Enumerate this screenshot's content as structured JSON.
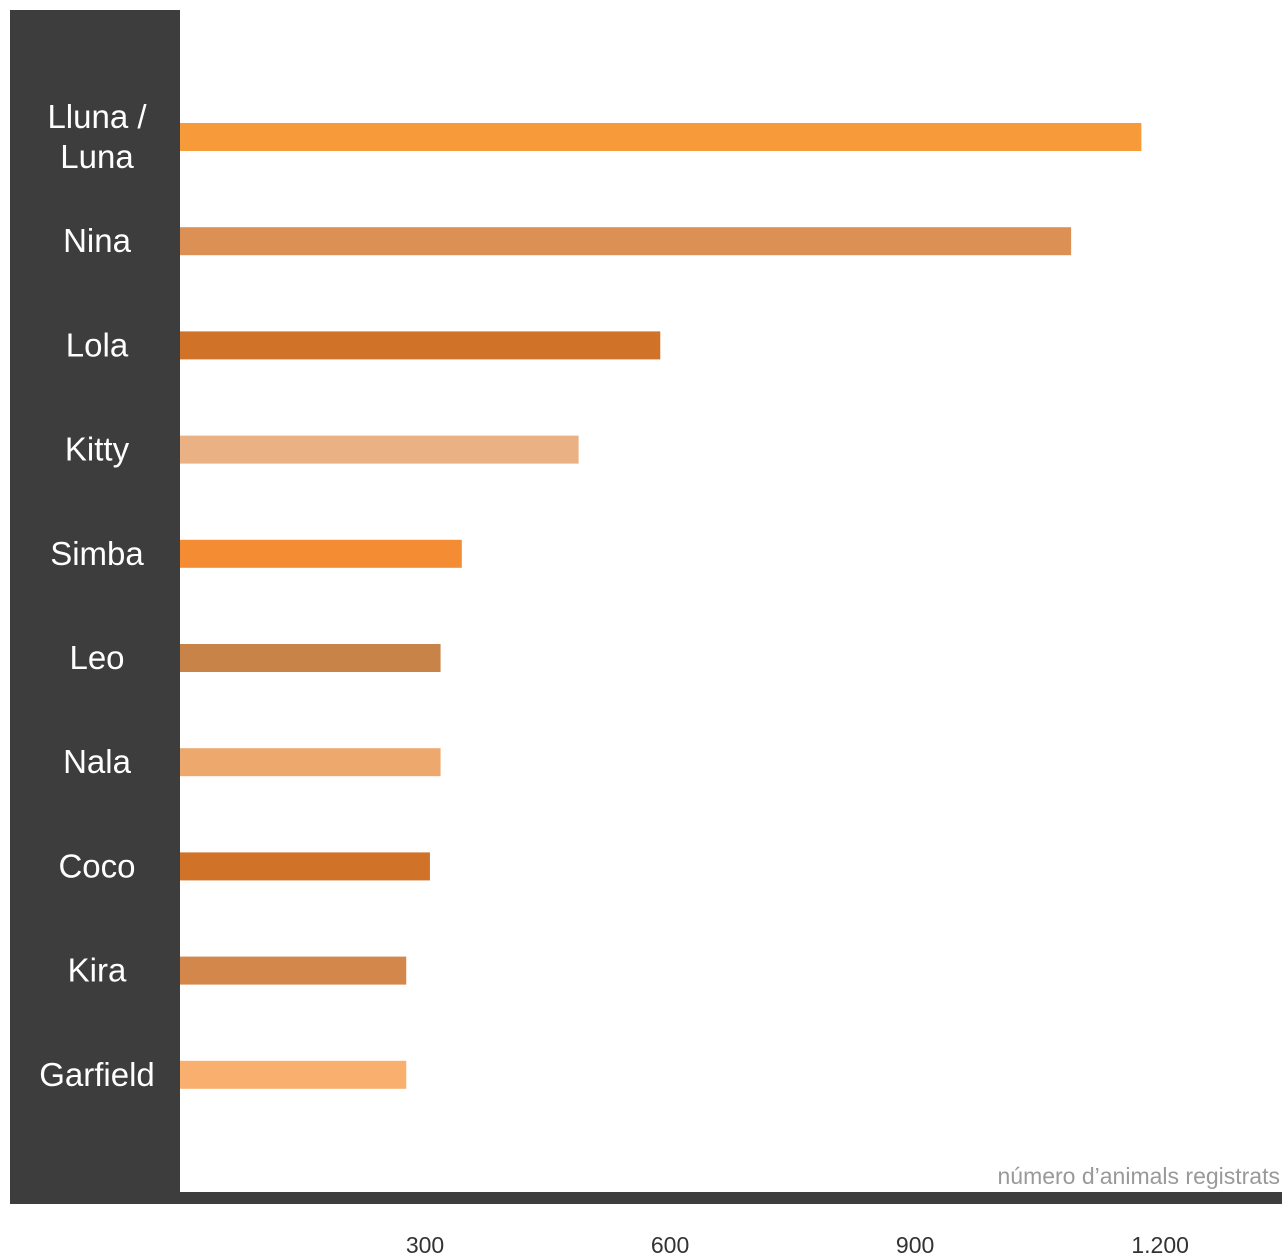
{
  "chart_data": {
    "type": "bar",
    "orientation": "horizontal",
    "categories": [
      "Lluna / Luna",
      "Nina",
      "Lola",
      "Kitty",
      "Simba",
      "Leo",
      "Nala",
      "Coco",
      "Kira",
      "Garfield"
    ],
    "values": [
      1177,
      1091,
      588,
      488,
      345,
      319,
      319,
      306,
      277,
      277
    ],
    "xlabel": "número d’animals registrats",
    "x_ticks": [
      300,
      600,
      900,
      1200
    ],
    "x_tick_labels": [
      "300",
      "600",
      "900",
      "1.200"
    ],
    "xlim": [
      0,
      1350
    ],
    "grid": false,
    "bar_colors": [
      "#F79A3A",
      "#DD9054",
      "#D07228",
      "#E9B184",
      "#F48C33",
      "#C88448",
      "#EDA86E",
      "#D07228",
      "#D4874A",
      "#F9B06F"
    ],
    "label_panel_color": "#3D3D3D"
  }
}
